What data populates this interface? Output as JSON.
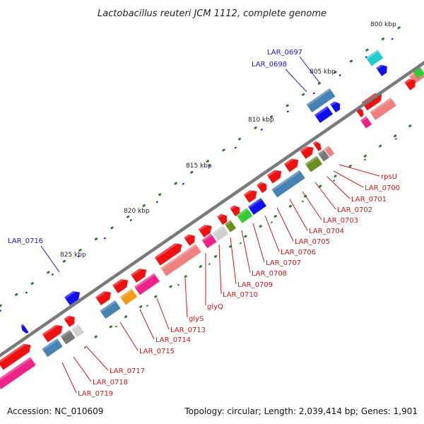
{
  "title": "Lactobacillus reuteri JCM 1112, complete genome",
  "footer": {
    "accession": "Accession: NC_010609",
    "summary": "Topology: circular; Length: 2,039,414 bp; Genes: 1,901"
  },
  "colors": {
    "backbone": "#7a7a7a",
    "label_forward": "#1a1acc",
    "label_reverse": "#cc1a1a",
    "tick": "#2e7d32",
    "red": "#ee1111",
    "salmon": "#f08080",
    "pink": "#ee2288",
    "steelblue": "#4682b4",
    "blue": "#1010ee",
    "orange": "#f59a1a",
    "gray": "#cfcfcf",
    "darkgray": "#777777",
    "olive": "#6b8e23",
    "green": "#33cc33",
    "cyan": "#22cccc"
  },
  "ticks": [
    "800 kbp",
    "805 kbp",
    "810 kbp",
    "815 kbp",
    "820 kbp",
    "825 kbp"
  ],
  "forward_labels": [
    "LAR_0697",
    "LAR_0698",
    "LAR_0716"
  ],
  "reverse_labels": [
    "rpsU",
    "LAR_0700",
    "LAR_0701",
    "LAR_0702",
    "LAR_0703",
    "LAR_0704",
    "LAR_0705",
    "LAR_0706",
    "LAR_0707",
    "LAR_0708",
    "LAR_0709",
    "LAR_0710",
    "glyQ",
    "glyS",
    "LAR_0713",
    "LAR_0714",
    "LAR_0715",
    "LAR_0717",
    "LAR_0718",
    "LAR_0719"
  ]
}
